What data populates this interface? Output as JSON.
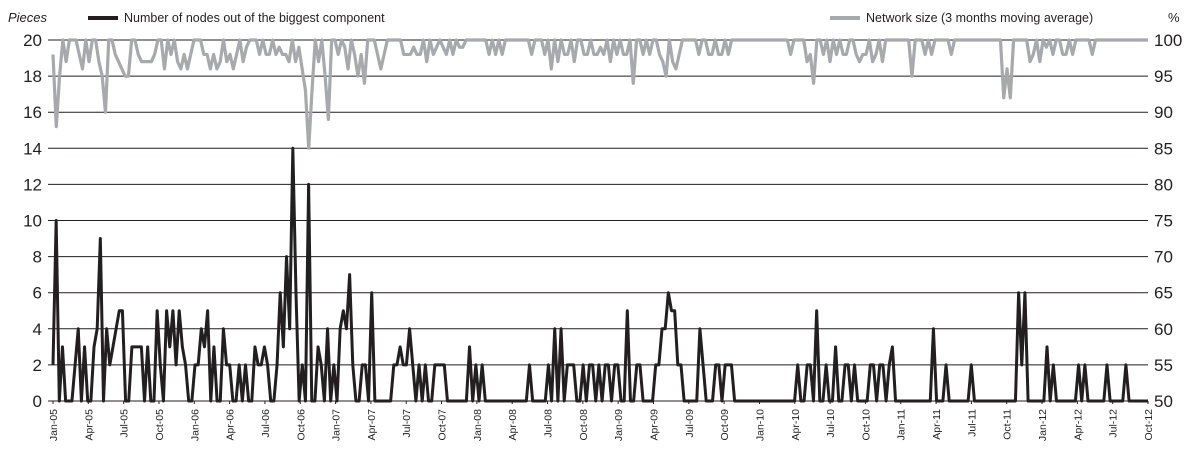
{
  "chart_data": {
    "type": "line",
    "left_axis_unit": "Pieces",
    "right_axis_unit": "%",
    "ylim_left": [
      0,
      20
    ],
    "ylim_right": [
      50,
      100
    ],
    "left_ticks": [
      "0",
      "2",
      "4",
      "6",
      "8",
      "10",
      "12",
      "14",
      "16",
      "18",
      "20"
    ],
    "right_ticks": [
      "50",
      "55",
      "60",
      "65",
      "70",
      "75",
      "80",
      "85",
      "90",
      "95",
      "100"
    ],
    "grid": "horizontal",
    "legend_placement": "top",
    "x_start": "Jan-05",
    "x_end": "Oct-12",
    "x_tick_labels": [
      "Jan-05",
      "Apr-05",
      "Jul-05",
      "Oct-05",
      "Jan-06",
      "Apr-06",
      "Jul-06",
      "Oct-06",
      "Jan-07",
      "Apr-07",
      "Jul-07",
      "Oct-07",
      "Jan-08",
      "Apr-08",
      "Jul-08",
      "Oct-08",
      "Jan-09",
      "Apr-09",
      "Jul-09",
      "Oct-09",
      "Jan-10",
      "Apr-10",
      "Jul-10",
      "Oct-10",
      "Jan-11",
      "Apr-11",
      "Jul-11",
      "Oct-11",
      "Jan-12",
      "Apr-12",
      "Jul-12",
      "Oct-12"
    ],
    "series": [
      {
        "name": "Number of nodes out of the biggest component",
        "axis": "left",
        "color": "#231f20",
        "values": [
          2,
          10,
          0,
          3,
          0,
          0,
          0,
          2,
          4,
          0,
          3,
          0,
          0,
          3,
          4,
          9,
          0,
          4,
          2,
          3,
          4,
          5,
          5,
          0,
          0,
          3,
          3,
          3,
          3,
          0,
          3,
          0,
          0,
          5,
          2,
          0,
          5,
          3,
          5,
          2,
          5,
          3,
          2,
          0,
          0,
          2,
          2,
          4,
          3,
          5,
          0,
          3,
          0,
          0,
          4,
          2,
          2,
          0,
          0,
          2,
          0,
          2,
          0,
          0,
          3,
          2,
          2,
          3,
          2,
          0,
          0,
          2,
          6,
          3,
          8,
          4,
          14,
          6,
          0,
          2,
          0,
          12,
          0,
          0,
          3,
          2,
          0,
          4,
          0,
          2,
          0,
          4,
          5,
          4,
          7,
          2,
          0,
          0,
          2,
          2,
          0,
          6,
          0,
          0,
          0,
          0,
          0,
          0,
          2,
          2,
          3,
          2,
          2,
          4,
          2,
          0,
          2,
          0,
          2,
          0,
          0,
          2,
          2,
          2,
          2,
          0,
          0,
          0,
          0,
          0,
          0,
          0,
          3,
          0,
          2,
          0,
          2,
          0,
          0,
          0,
          0,
          0,
          0,
          0,
          0,
          0,
          0,
          0,
          0,
          0,
          0,
          2,
          0,
          0,
          0,
          0,
          0,
          2,
          0,
          4,
          0,
          4,
          0,
          2,
          2,
          2,
          0,
          0,
          2,
          0,
          2,
          2,
          0,
          2,
          0,
          2,
          2,
          0,
          2,
          2,
          0,
          0,
          5,
          0,
          0,
          2,
          2,
          0,
          0,
          0,
          0,
          2,
          2,
          4,
          4,
          6,
          5,
          5,
          2,
          2,
          0,
          0,
          0,
          0,
          0,
          4,
          2,
          0,
          0,
          0,
          2,
          2,
          0,
          2,
          2,
          2,
          0,
          0,
          0,
          0,
          0,
          0,
          0,
          0,
          0,
          0,
          0,
          0,
          0,
          0,
          0,
          0,
          0,
          0,
          0,
          0,
          2,
          0,
          0,
          2,
          2,
          0,
          5,
          0,
          0,
          2,
          0,
          0,
          3,
          0,
          0,
          2,
          2,
          0,
          2,
          0,
          0,
          0,
          0,
          2,
          2,
          0,
          2,
          2,
          0,
          2,
          3,
          0,
          0,
          0,
          0,
          0,
          0,
          0,
          0,
          0,
          0,
          0,
          0,
          4,
          0,
          0,
          0,
          2,
          0,
          0,
          0,
          0,
          0,
          0,
          0,
          2,
          0,
          0,
          0,
          0,
          0,
          0,
          0,
          0,
          0,
          0,
          0,
          0,
          0,
          0,
          6,
          2,
          6,
          0,
          0,
          0,
          0,
          0,
          0,
          3,
          0,
          2,
          0,
          0,
          0,
          0,
          0,
          0,
          0,
          2,
          0,
          2,
          0,
          0,
          0,
          0,
          0,
          0,
          2,
          0,
          0,
          0,
          0,
          0,
          2,
          0,
          0,
          0,
          0,
          0,
          0,
          0
        ]
      },
      {
        "name": "Network size (3 months moving average)",
        "axis": "right",
        "color": "#a7a9ac",
        "values": [
          98,
          88,
          95,
          100,
          97,
          100,
          100,
          100,
          98,
          96,
          100,
          97,
          100,
          100,
          97,
          95,
          90,
          100,
          100,
          98,
          97,
          96,
          95,
          95,
          100,
          100,
          98,
          97,
          97,
          97,
          97,
          98,
          100,
          100,
          96,
          100,
          98,
          100,
          97,
          96,
          98,
          96,
          98,
          100,
          100,
          100,
          98,
          98,
          96,
          98,
          96,
          97,
          100,
          97,
          98,
          96,
          98,
          100,
          97,
          99,
          100,
          100,
          100,
          98,
          100,
          98,
          98,
          100,
          98,
          99,
          98,
          98,
          97,
          100,
          97,
          99,
          96,
          93,
          85,
          93,
          100,
          97,
          100,
          95,
          89,
          100,
          100,
          98,
          100,
          99,
          96,
          100,
          98,
          95,
          98,
          94,
          100,
          100,
          100,
          98,
          96,
          98,
          100,
          100,
          100,
          100,
          100,
          98,
          98,
          98,
          99,
          98,
          98,
          100,
          97,
          100,
          98,
          99,
          100,
          99,
          98,
          100,
          98,
          100,
          99,
          99,
          100,
          100,
          100,
          100,
          100,
          100,
          100,
          98,
          100,
          98,
          100,
          98,
          100,
          100,
          100,
          100,
          100,
          100,
          100,
          100,
          98,
          100,
          100,
          100,
          98,
          100,
          96,
          100,
          97,
          100,
          98,
          98,
          100,
          97,
          100,
          100,
          98,
          98,
          100,
          98,
          98,
          99,
          98,
          100,
          97,
          100,
          98,
          100,
          98,
          98,
          100,
          94,
          100,
          100,
          98,
          100,
          98,
          100,
          100,
          98,
          97,
          95,
          100,
          97,
          96,
          98,
          100,
          100,
          100,
          100,
          100,
          98,
          100,
          100,
          98,
          98,
          100,
          98,
          98,
          100,
          98,
          100,
          100,
          100,
          100,
          100,
          100,
          100,
          100,
          100,
          100,
          100,
          100,
          100,
          100,
          100,
          100,
          100,
          100,
          98,
          100,
          100,
          100,
          100,
          97,
          98,
          94,
          100,
          100,
          98,
          100,
          97,
          100,
          98,
          100,
          98,
          98,
          100,
          100,
          98,
          97,
          98,
          98,
          100,
          97,
          98,
          100,
          97,
          100,
          100,
          100,
          100,
          100,
          100,
          100,
          100,
          95,
          100,
          100,
          100,
          98,
          100,
          98,
          100,
          100,
          100,
          100,
          100,
          98,
          100,
          100,
          100,
          100,
          100,
          100,
          100,
          100,
          100,
          100,
          100,
          100,
          100,
          100,
          100,
          92,
          96,
          92,
          100,
          100,
          100,
          100,
          100,
          97,
          98,
          100,
          97,
          100,
          99,
          100,
          98,
          100,
          100,
          98,
          98,
          100,
          98,
          100,
          100,
          100,
          100,
          100,
          98,
          100,
          100,
          100,
          100,
          100,
          100,
          100,
          100,
          100,
          100,
          100,
          100,
          100,
          100,
          100,
          100,
          100
        ]
      }
    ]
  }
}
